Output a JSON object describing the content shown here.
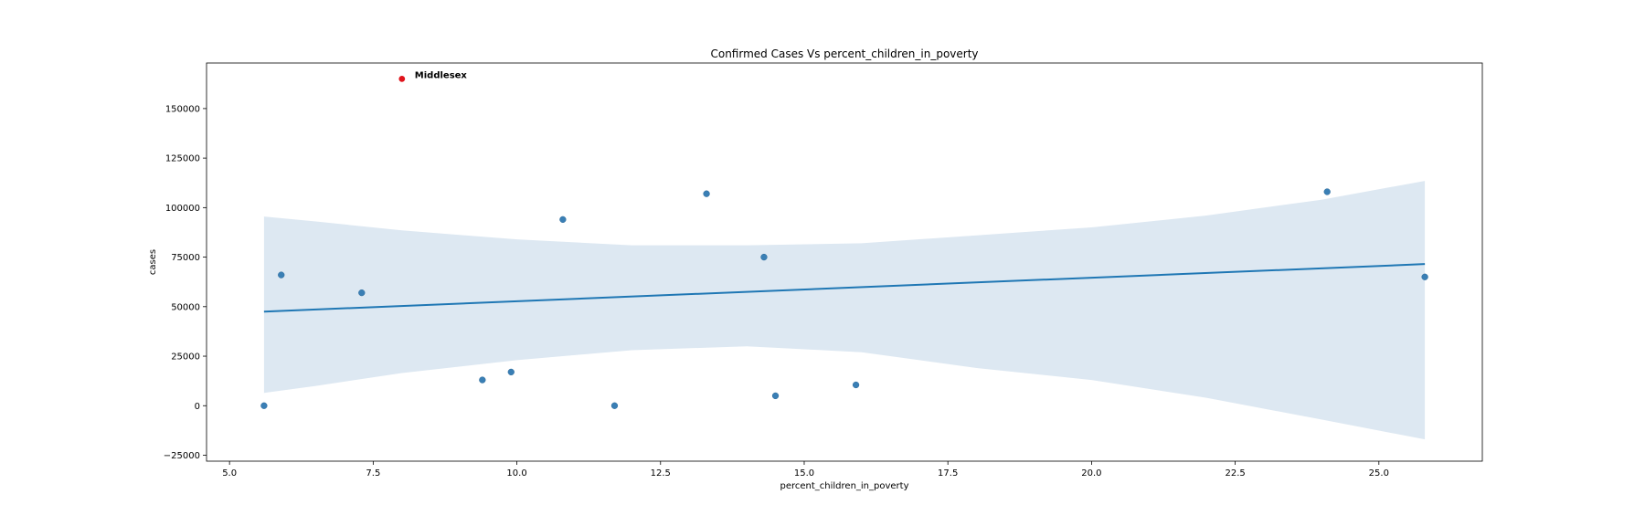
{
  "chart_data": {
    "type": "scatter",
    "title": "Confirmed Cases Vs percent_children_in_poverty",
    "xlabel": "percent_children_in_poverty",
    "ylabel": "cases",
    "xlim": [
      4.6,
      26.8
    ],
    "ylim": [
      -28000,
      173000
    ],
    "xticks": [
      5.0,
      7.5,
      10.0,
      12.5,
      15.0,
      17.5,
      20.0,
      22.5,
      25.0
    ],
    "xtick_labels": [
      "5.0",
      "7.5",
      "10.0",
      "12.5",
      "15.0",
      "17.5",
      "20.0",
      "22.5",
      "25.0"
    ],
    "yticks": [
      -25000,
      0,
      25000,
      50000,
      75000,
      100000,
      125000,
      150000
    ],
    "ytick_labels": [
      "−25000",
      "0",
      "25000",
      "50000",
      "75000",
      "100000",
      "125000",
      "150000"
    ],
    "points": [
      {
        "x": 5.6,
        "y": 0
      },
      {
        "x": 5.9,
        "y": 66000
      },
      {
        "x": 7.3,
        "y": 57000
      },
      {
        "x": 9.4,
        "y": 13000
      },
      {
        "x": 9.9,
        "y": 17000
      },
      {
        "x": 10.8,
        "y": 94000
      },
      {
        "x": 11.7,
        "y": 0
      },
      {
        "x": 13.3,
        "y": 107000
      },
      {
        "x": 14.3,
        "y": 75000
      },
      {
        "x": 14.5,
        "y": 5000
      },
      {
        "x": 15.9,
        "y": 10500
      },
      {
        "x": 24.1,
        "y": 108000
      },
      {
        "x": 25.8,
        "y": 65000
      }
    ],
    "highlight": {
      "x": 8.0,
      "y": 165000,
      "label": "Middlesex",
      "color": "#e0141c"
    },
    "regression": {
      "x": [
        5.6,
        25.8
      ],
      "y": [
        47500,
        71500
      ]
    },
    "confidence_band": {
      "x": [
        5.6,
        6.5,
        8.0,
        10.0,
        12.0,
        14.0,
        16.0,
        18.0,
        20.0,
        22.0,
        24.0,
        25.8
      ],
      "upper": [
        95500,
        93000,
        88500,
        84000,
        81000,
        81000,
        82000,
        86000,
        90000,
        96000,
        104000,
        113500
      ],
      "lower": [
        6500,
        10000,
        16500,
        23000,
        28000,
        30000,
        27000,
        19000,
        13000,
        4000,
        -7000,
        -17000
      ]
    },
    "colors": {
      "points": "#3a7fb5",
      "line": "#1f77b4",
      "band": "#dde8f2"
    }
  }
}
